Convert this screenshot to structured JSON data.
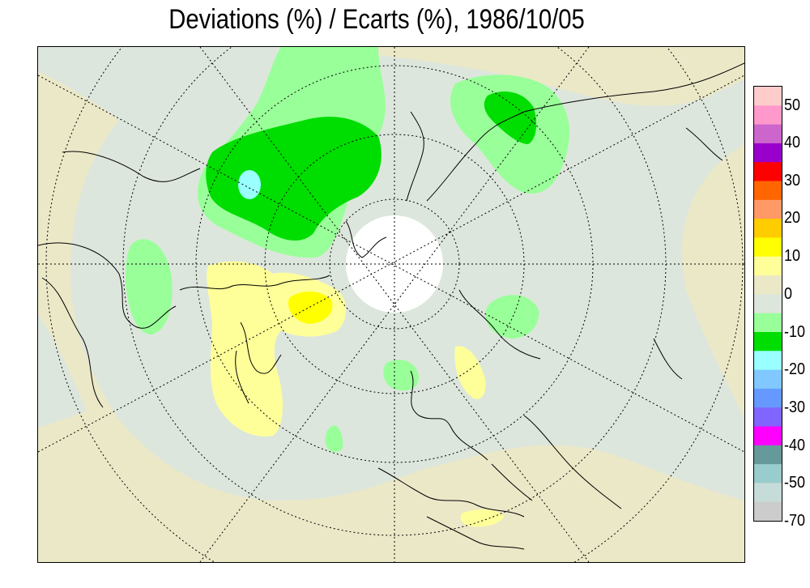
{
  "title": "Deviations (%) / Ecarts (%), 1986/10/05",
  "legend": {
    "labels": [
      "50",
      "40",
      "30",
      "20",
      "10",
      "0",
      "-10",
      "-20",
      "-30",
      "-40",
      "-50",
      "-70"
    ],
    "colors": [
      "#ffcccc",
      "#ff99cc",
      "#cc66cc",
      "#9900cc",
      "#ff0000",
      "#ff6600",
      "#ff9966",
      "#ffcc00",
      "#ffff00",
      "#ffff99",
      "#ebe8c8",
      "#dde6dc",
      "#99ff99",
      "#00dd00",
      "#99ffff",
      "#80c8ff",
      "#6699ff",
      "#8066ff",
      "#ff00ff",
      "#669999",
      "#99cccc",
      "#c6dcd8",
      "#cccccc"
    ]
  },
  "map_colors": {
    "background": "#ebe8c8",
    "near_zero": "#dde6dc",
    "light_green": "#99ff99",
    "green": "#00dd00",
    "cyan": "#99ffff",
    "light_yellow": "#ffff99",
    "yellow": "#ffff00",
    "polar_gap": "#ffffff"
  }
}
